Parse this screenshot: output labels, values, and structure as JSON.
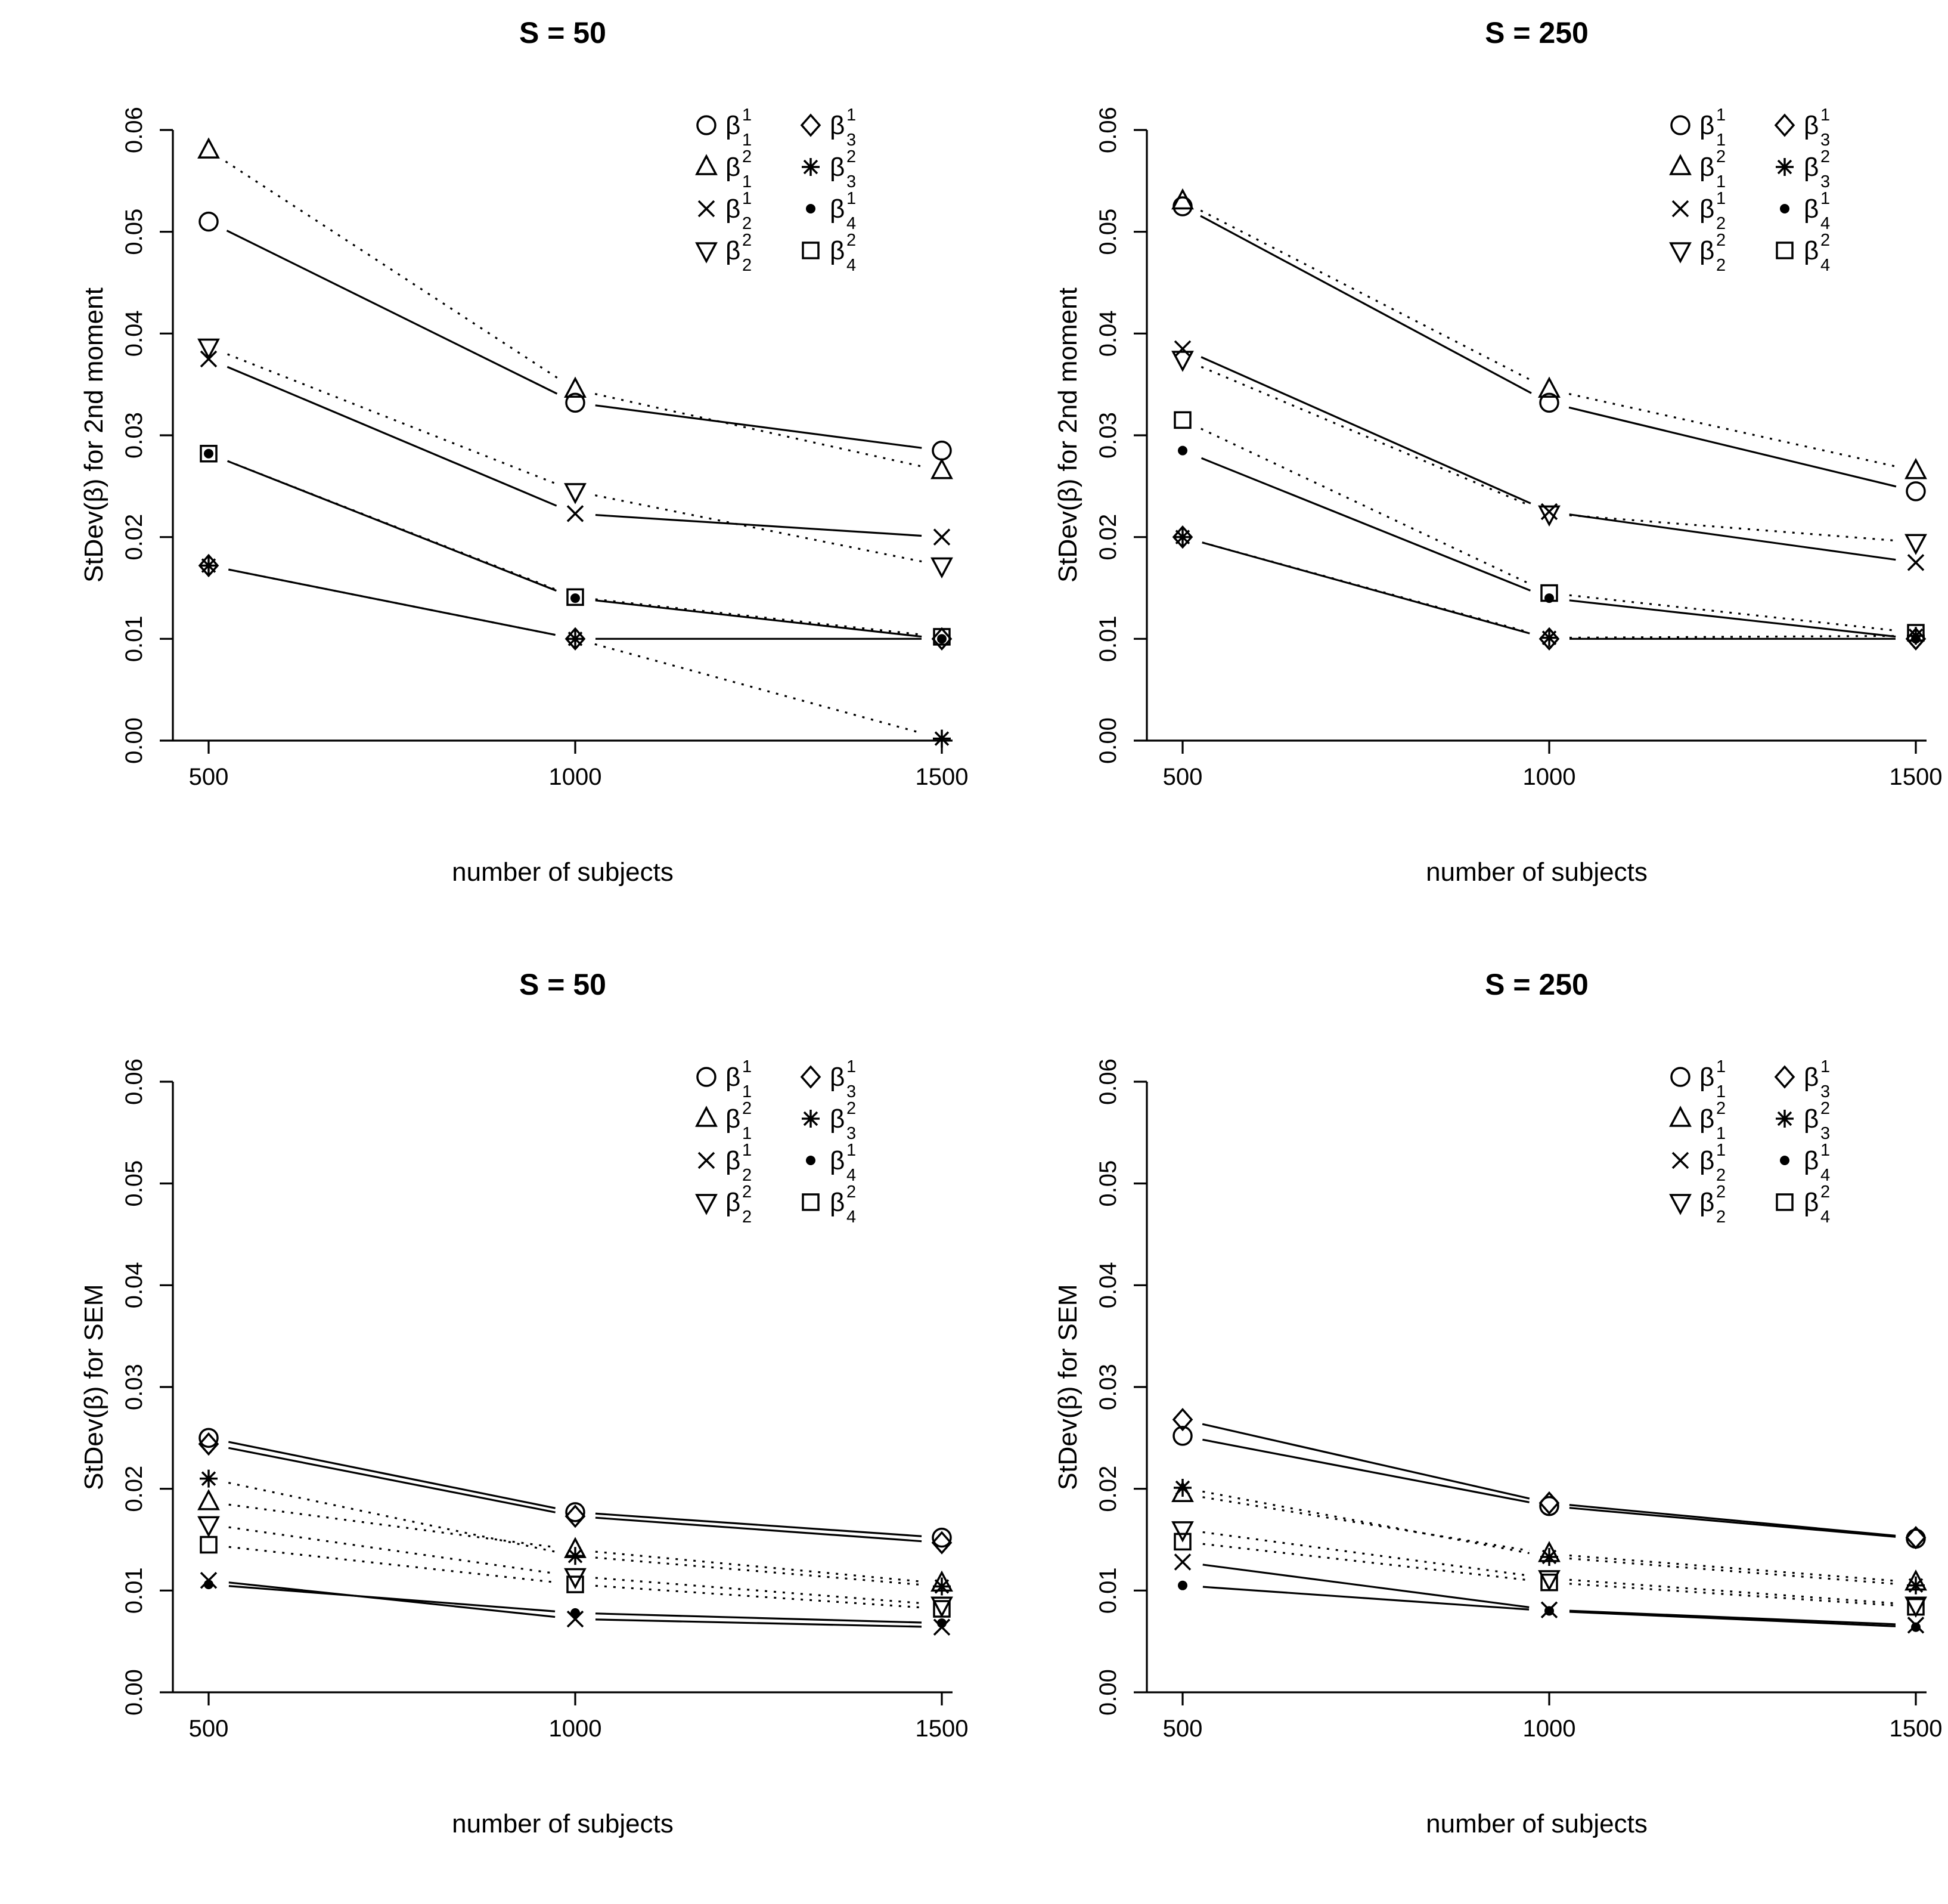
{
  "page_background": "#ffffff",
  "ink_color": "#000000",
  "chart_data": [
    {
      "type": "line",
      "title": "S = 50",
      "xlabel": "number of subjects",
      "ylabel": "StDev(β) for 2nd moment",
      "x": [
        500,
        1000,
        1500
      ],
      "xticks": [
        500,
        1000,
        1500
      ],
      "ylim": [
        0.0,
        0.06
      ],
      "ytick_step": 0.01,
      "grid": false,
      "legend_position": "top-right",
      "legend_columns": 2,
      "series": [
        {
          "name": "β_1^1",
          "base": "β",
          "sub": "1",
          "sup": "1",
          "marker": "open-circle",
          "line": "solid",
          "values": [
            0.051,
            0.0332,
            0.0285
          ]
        },
        {
          "name": "β_1^2",
          "base": "β",
          "sub": "1",
          "sup": "2",
          "marker": "open-triangle-up",
          "line": "dotted",
          "values": [
            0.058,
            0.0345,
            0.0265
          ]
        },
        {
          "name": "β_2^1",
          "base": "β",
          "sub": "2",
          "sup": "1",
          "marker": "x-cross",
          "line": "solid",
          "values": [
            0.0375,
            0.0223,
            0.02
          ]
        },
        {
          "name": "β_2^2",
          "base": "β",
          "sub": "2",
          "sup": "2",
          "marker": "open-triangle-down",
          "line": "dotted",
          "values": [
            0.0387,
            0.0245,
            0.0172
          ]
        },
        {
          "name": "β_3^1",
          "base": "β",
          "sub": "3",
          "sup": "1",
          "marker": "open-diamond",
          "line": "solid",
          "values": [
            0.0172,
            0.01,
            0.01
          ]
        },
        {
          "name": "β_3^2",
          "base": "β",
          "sub": "3",
          "sup": "2",
          "marker": "asterisk",
          "line": "dotted",
          "values": [
            0.0172,
            0.01,
            0.0002
          ]
        },
        {
          "name": "β_4^1",
          "base": "β",
          "sub": "4",
          "sup": "1",
          "marker": "filled-dot",
          "line": "solid",
          "values": [
            0.0282,
            0.014,
            0.01
          ]
        },
        {
          "name": "β_4^2",
          "base": "β",
          "sub": "4",
          "sup": "2",
          "marker": "open-square",
          "line": "dotted",
          "values": [
            0.0282,
            0.0141,
            0.0102
          ]
        }
      ]
    },
    {
      "type": "line",
      "title": "S = 250",
      "xlabel": "number of subjects",
      "ylabel": "StDev(β) for 2nd moment",
      "x": [
        500,
        1000,
        1500
      ],
      "xticks": [
        500,
        1000,
        1500
      ],
      "ylim": [
        0.0,
        0.06
      ],
      "ytick_step": 0.01,
      "grid": false,
      "legend_position": "top-right",
      "legend_columns": 2,
      "series": [
        {
          "name": "β_1^1",
          "base": "β",
          "sub": "1",
          "sup": "1",
          "marker": "open-circle",
          "line": "solid",
          "values": [
            0.0525,
            0.0332,
            0.0245
          ]
        },
        {
          "name": "β_1^2",
          "base": "β",
          "sub": "1",
          "sup": "2",
          "marker": "open-triangle-up",
          "line": "dotted",
          "values": [
            0.053,
            0.0345,
            0.0265
          ]
        },
        {
          "name": "β_2^1",
          "base": "β",
          "sub": "2",
          "sup": "1",
          "marker": "x-cross",
          "line": "solid",
          "values": [
            0.0385,
            0.0225,
            0.0175
          ]
        },
        {
          "name": "β_2^2",
          "base": "β",
          "sub": "2",
          "sup": "2",
          "marker": "open-triangle-down",
          "line": "dotted",
          "values": [
            0.0375,
            0.0223,
            0.0195
          ]
        },
        {
          "name": "β_3^1",
          "base": "β",
          "sub": "3",
          "sup": "1",
          "marker": "open-diamond",
          "line": "solid",
          "values": [
            0.02,
            0.01,
            0.01
          ]
        },
        {
          "name": "β_3^2",
          "base": "β",
          "sub": "3",
          "sup": "2",
          "marker": "asterisk",
          "line": "dotted",
          "values": [
            0.02,
            0.0101,
            0.0103
          ]
        },
        {
          "name": "β_4^1",
          "base": "β",
          "sub": "4",
          "sup": "1",
          "marker": "filled-dot",
          "line": "solid",
          "values": [
            0.0285,
            0.014,
            0.01
          ]
        },
        {
          "name": "β_4^2",
          "base": "β",
          "sub": "4",
          "sup": "2",
          "marker": "open-square",
          "line": "dotted",
          "values": [
            0.0315,
            0.0145,
            0.0106
          ]
        }
      ]
    },
    {
      "type": "line",
      "title": "S = 50",
      "xlabel": "number of subjects",
      "ylabel": "StDev(β) for SEM",
      "x": [
        500,
        1000,
        1500
      ],
      "xticks": [
        500,
        1000,
        1500
      ],
      "ylim": [
        0.0,
        0.06
      ],
      "ytick_step": 0.01,
      "grid": false,
      "legend_position": "top-right",
      "legend_columns": 2,
      "series": [
        {
          "name": "β_1^1",
          "base": "β",
          "sub": "1",
          "sup": "1",
          "marker": "open-circle",
          "line": "solid",
          "values": [
            0.025,
            0.0177,
            0.0152
          ]
        },
        {
          "name": "β_1^2",
          "base": "β",
          "sub": "1",
          "sup": "2",
          "marker": "open-triangle-up",
          "line": "dotted",
          "values": [
            0.0187,
            0.014,
            0.0107
          ]
        },
        {
          "name": "β_2^1",
          "base": "β",
          "sub": "2",
          "sup": "1",
          "marker": "x-cross",
          "line": "solid",
          "values": [
            0.011,
            0.0072,
            0.0064
          ]
        },
        {
          "name": "β_2^2",
          "base": "β",
          "sub": "2",
          "sup": "2",
          "marker": "open-triangle-down",
          "line": "dotted",
          "values": [
            0.0165,
            0.0114,
            0.0086
          ]
        },
        {
          "name": "β_3^1",
          "base": "β",
          "sub": "3",
          "sup": "1",
          "marker": "open-diamond",
          "line": "solid",
          "values": [
            0.0244,
            0.0173,
            0.0147
          ]
        },
        {
          "name": "β_3^2",
          "base": "β",
          "sub": "3",
          "sup": "2",
          "marker": "asterisk",
          "line": "dotted",
          "values": [
            0.021,
            0.0134,
            0.0104
          ]
        },
        {
          "name": "β_4^1",
          "base": "β",
          "sub": "4",
          "sup": "1",
          "marker": "filled-dot",
          "line": "solid",
          "values": [
            0.0106,
            0.0078,
            0.0068
          ]
        },
        {
          "name": "β_4^2",
          "base": "β",
          "sub": "4",
          "sup": "2",
          "marker": "open-square",
          "line": "dotted",
          "values": [
            0.0145,
            0.0106,
            0.0082
          ]
        }
      ]
    },
    {
      "type": "line",
      "title": "S = 250",
      "xlabel": "number of subjects",
      "ylabel": "StDev(β) for SEM",
      "x": [
        500,
        1000,
        1500
      ],
      "xticks": [
        500,
        1000,
        1500
      ],
      "ylim": [
        0.0,
        0.06
      ],
      "ytick_step": 0.01,
      "grid": false,
      "legend_position": "top-right",
      "legend_columns": 2,
      "series": [
        {
          "name": "β_1^1",
          "base": "β",
          "sub": "1",
          "sup": "1",
          "marker": "open-circle",
          "line": "solid",
          "values": [
            0.0252,
            0.0183,
            0.0151
          ]
        },
        {
          "name": "β_1^2",
          "base": "β",
          "sub": "1",
          "sup": "2",
          "marker": "open-triangle-up",
          "line": "dotted",
          "values": [
            0.0195,
            0.0136,
            0.0108
          ]
        },
        {
          "name": "β_2^1",
          "base": "β",
          "sub": "2",
          "sup": "1",
          "marker": "x-cross",
          "line": "solid",
          "values": [
            0.0128,
            0.0081,
            0.0066
          ]
        },
        {
          "name": "β_2^2",
          "base": "β",
          "sub": "2",
          "sup": "2",
          "marker": "open-triangle-down",
          "line": "dotted",
          "values": [
            0.016,
            0.0112,
            0.0086
          ]
        },
        {
          "name": "β_3^1",
          "base": "β",
          "sub": "3",
          "sup": "1",
          "marker": "open-diamond",
          "line": "solid",
          "values": [
            0.0268,
            0.0186,
            0.0152
          ]
        },
        {
          "name": "β_3^2",
          "base": "β",
          "sub": "3",
          "sup": "2",
          "marker": "asterisk",
          "line": "dotted",
          "values": [
            0.0201,
            0.0133,
            0.0105
          ]
        },
        {
          "name": "β_4^1",
          "base": "β",
          "sub": "4",
          "sup": "1",
          "marker": "filled-dot",
          "line": "solid",
          "values": [
            0.0105,
            0.008,
            0.0064
          ]
        },
        {
          "name": "β_4^2",
          "base": "β",
          "sub": "4",
          "sup": "2",
          "marker": "open-square",
          "line": "dotted",
          "values": [
            0.0148,
            0.0108,
            0.0084
          ]
        }
      ]
    }
  ]
}
